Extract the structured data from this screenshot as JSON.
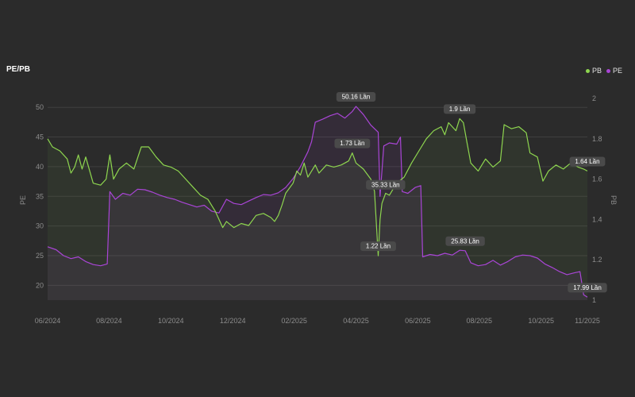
{
  "chart_data": {
    "type": "line",
    "title": "PE/PB",
    "legend": [
      {
        "name": "PB",
        "color": "#8ed64f"
      },
      {
        "name": "PE",
        "color": "#a945d6"
      }
    ],
    "legend_position": "top-right",
    "y_left_label": "PE",
    "y_right_label": "PB",
    "y_left_range": [
      17.5,
      51.5
    ],
    "y_right_range": [
      1.0,
      2.0
    ],
    "y_left_ticks": [
      20,
      25,
      30,
      35,
      40,
      45,
      50
    ],
    "y_right_ticks": [
      1,
      1.2,
      1.4,
      1.6,
      1.8,
      2
    ],
    "x_range": [
      2024.417,
      2025.875
    ],
    "x_ticks": [
      {
        "label": "06/2024",
        "x": 2024.417
      },
      {
        "label": "08/2024",
        "x": 2024.583
      },
      {
        "label": "10/2024",
        "x": 2024.75
      },
      {
        "label": "12/2024",
        "x": 2024.917
      },
      {
        "label": "02/2025",
        "x": 2025.083
      },
      {
        "label": "04/2025",
        "x": 2025.25
      },
      {
        "label": "06/2025",
        "x": 2025.417
      },
      {
        "label": "08/2025",
        "x": 2025.583
      },
      {
        "label": "10/2025",
        "x": 2025.75
      },
      {
        "label": "11/2025",
        "x": 2025.875
      }
    ],
    "grid": true,
    "series": [
      {
        "name": "PE",
        "axis": "left",
        "color": "#a945d6",
        "points": [
          [
            2024.417,
            26.5
          ],
          [
            2024.44,
            26
          ],
          [
            2024.46,
            25
          ],
          [
            2024.48,
            24.5
          ],
          [
            2024.5,
            24.8
          ],
          [
            2024.52,
            24
          ],
          [
            2024.54,
            23.5
          ],
          [
            2024.56,
            23.3
          ],
          [
            2024.578,
            23.6
          ],
          [
            2024.585,
            35.8
          ],
          [
            2024.6,
            34.5
          ],
          [
            2024.62,
            35.5
          ],
          [
            2024.64,
            35.2
          ],
          [
            2024.66,
            36.2
          ],
          [
            2024.68,
            36.1
          ],
          [
            2024.7,
            35.7
          ],
          [
            2024.72,
            35.2
          ],
          [
            2024.74,
            34.8
          ],
          [
            2024.76,
            34.5
          ],
          [
            2024.78,
            34
          ],
          [
            2024.8,
            33.6
          ],
          [
            2024.82,
            33.2
          ],
          [
            2024.84,
            33.5
          ],
          [
            2024.86,
            32.5
          ],
          [
            2024.88,
            32.2
          ],
          [
            2024.9,
            34.5
          ],
          [
            2024.92,
            33.8
          ],
          [
            2024.94,
            33.6
          ],
          [
            2024.96,
            34.2
          ],
          [
            2024.98,
            34.8
          ],
          [
            2025.0,
            35.3
          ],
          [
            2025.02,
            35.2
          ],
          [
            2025.04,
            35.6
          ],
          [
            2025.06,
            36.5
          ],
          [
            2025.08,
            38
          ],
          [
            2025.1,
            40
          ],
          [
            2025.12,
            42.5
          ],
          [
            2025.13,
            44.2
          ],
          [
            2025.14,
            47.5
          ],
          [
            2025.16,
            48
          ],
          [
            2025.18,
            48.6
          ],
          [
            2025.2,
            49
          ],
          [
            2025.22,
            48.2
          ],
          [
            2025.24,
            49.3
          ],
          [
            2025.25,
            50.16
          ],
          [
            2025.27,
            48.8
          ],
          [
            2025.29,
            47
          ],
          [
            2025.31,
            45.8
          ],
          [
            2025.315,
            35
          ],
          [
            2025.325,
            43.5
          ],
          [
            2025.34,
            44
          ],
          [
            2025.36,
            43.8
          ],
          [
            2025.37,
            45
          ],
          [
            2025.375,
            35.8
          ],
          [
            2025.39,
            35.5
          ],
          [
            2025.41,
            36.5
          ],
          [
            2025.425,
            36.8
          ],
          [
            2025.43,
            24.8
          ],
          [
            2025.45,
            25.2
          ],
          [
            2025.47,
            25
          ],
          [
            2025.49,
            25.4
          ],
          [
            2025.51,
            25.1
          ],
          [
            2025.53,
            25.9
          ],
          [
            2025.545,
            25.83
          ],
          [
            2025.56,
            23.8
          ],
          [
            2025.58,
            23.3
          ],
          [
            2025.6,
            23.5
          ],
          [
            2025.62,
            24.2
          ],
          [
            2025.64,
            23.4
          ],
          [
            2025.66,
            24
          ],
          [
            2025.68,
            24.8
          ],
          [
            2025.7,
            25.1
          ],
          [
            2025.72,
            25
          ],
          [
            2025.74,
            24.6
          ],
          [
            2025.76,
            23.6
          ],
          [
            2025.78,
            23
          ],
          [
            2025.8,
            22.3
          ],
          [
            2025.82,
            21.8
          ],
          [
            2025.84,
            22.1
          ],
          [
            2025.855,
            22.3
          ],
          [
            2025.865,
            18.4
          ],
          [
            2025.875,
            17.99
          ]
        ]
      },
      {
        "name": "PB",
        "axis": "right",
        "color": "#8ed64f",
        "points": [
          [
            2024.417,
            1.8
          ],
          [
            2024.43,
            1.76
          ],
          [
            2024.45,
            1.74
          ],
          [
            2024.47,
            1.7
          ],
          [
            2024.48,
            1.63
          ],
          [
            2024.49,
            1.66
          ],
          [
            2024.5,
            1.72
          ],
          [
            2024.51,
            1.65
          ],
          [
            2024.52,
            1.71
          ],
          [
            2024.54,
            1.58
          ],
          [
            2024.56,
            1.57
          ],
          [
            2024.575,
            1.6
          ],
          [
            2024.585,
            1.72
          ],
          [
            2024.595,
            1.6
          ],
          [
            2024.61,
            1.65
          ],
          [
            2024.63,
            1.68
          ],
          [
            2024.65,
            1.65
          ],
          [
            2024.67,
            1.76
          ],
          [
            2024.69,
            1.76
          ],
          [
            2024.71,
            1.71
          ],
          [
            2024.73,
            1.67
          ],
          [
            2024.75,
            1.66
          ],
          [
            2024.77,
            1.64
          ],
          [
            2024.79,
            1.6
          ],
          [
            2024.81,
            1.56
          ],
          [
            2024.83,
            1.52
          ],
          [
            2024.85,
            1.5
          ],
          [
            2024.87,
            1.44
          ],
          [
            2024.89,
            1.36
          ],
          [
            2024.9,
            1.39
          ],
          [
            2024.92,
            1.36
          ],
          [
            2024.94,
            1.38
          ],
          [
            2024.96,
            1.37
          ],
          [
            2024.98,
            1.42
          ],
          [
            2025.0,
            1.43
          ],
          [
            2025.02,
            1.41
          ],
          [
            2025.03,
            1.39
          ],
          [
            2025.04,
            1.42
          ],
          [
            2025.05,
            1.47
          ],
          [
            2025.06,
            1.53
          ],
          [
            2025.08,
            1.58
          ],
          [
            2025.09,
            1.64
          ],
          [
            2025.1,
            1.62
          ],
          [
            2025.11,
            1.68
          ],
          [
            2025.12,
            1.61
          ],
          [
            2025.14,
            1.67
          ],
          [
            2025.15,
            1.63
          ],
          [
            2025.17,
            1.67
          ],
          [
            2025.19,
            1.66
          ],
          [
            2025.21,
            1.67
          ],
          [
            2025.23,
            1.69
          ],
          [
            2025.24,
            1.73
          ],
          [
            2025.25,
            1.68
          ],
          [
            2025.27,
            1.65
          ],
          [
            2025.29,
            1.6
          ],
          [
            2025.3,
            1.54
          ],
          [
            2025.31,
            1.22
          ],
          [
            2025.315,
            1.4
          ],
          [
            2025.32,
            1.48
          ],
          [
            2025.33,
            1.53
          ],
          [
            2025.34,
            1.52
          ],
          [
            2025.35,
            1.55
          ],
          [
            2025.36,
            1.58
          ],
          [
            2025.38,
            1.61
          ],
          [
            2025.4,
            1.68
          ],
          [
            2025.42,
            1.74
          ],
          [
            2025.44,
            1.8
          ],
          [
            2025.46,
            1.84
          ],
          [
            2025.48,
            1.86
          ],
          [
            2025.49,
            1.82
          ],
          [
            2025.5,
            1.88
          ],
          [
            2025.52,
            1.84
          ],
          [
            2025.53,
            1.9
          ],
          [
            2025.54,
            1.88
          ],
          [
            2025.55,
            1.78
          ],
          [
            2025.56,
            1.68
          ],
          [
            2025.58,
            1.64
          ],
          [
            2025.6,
            1.7
          ],
          [
            2025.62,
            1.66
          ],
          [
            2025.64,
            1.69
          ],
          [
            2025.65,
            1.87
          ],
          [
            2025.67,
            1.85
          ],
          [
            2025.69,
            1.86
          ],
          [
            2025.71,
            1.83
          ],
          [
            2025.72,
            1.73
          ],
          [
            2025.74,
            1.71
          ],
          [
            2025.755,
            1.59
          ],
          [
            2025.77,
            1.64
          ],
          [
            2025.79,
            1.67
          ],
          [
            2025.81,
            1.65
          ],
          [
            2025.83,
            1.68
          ],
          [
            2025.85,
            1.66
          ],
          [
            2025.865,
            1.65
          ],
          [
            2025.875,
            1.64
          ]
        ]
      }
    ],
    "annotations": [
      {
        "text": "50.16 Lần",
        "series": "PE",
        "x": 2025.25,
        "value": 50.16
      },
      {
        "text": "1.9 Lần",
        "series": "PB",
        "x": 2025.53,
        "value": 1.9
      },
      {
        "text": "1.73 Lần",
        "series": "PB",
        "x": 2025.24,
        "value": 1.73
      },
      {
        "text": "35.33 Lần",
        "series": "PE",
        "x": 2025.33,
        "value": 35.33
      },
      {
        "text": "1.22 Lần",
        "series": "PB",
        "x": 2025.31,
        "value": 1.22
      },
      {
        "text": "25.83 Lần",
        "series": "PE",
        "x": 2025.545,
        "value": 25.83
      },
      {
        "text": "1.64 Lần",
        "series": "PB",
        "x": 2025.875,
        "value": 1.64
      },
      {
        "text": "17.99 Lần",
        "series": "PE",
        "x": 2025.875,
        "value": 17.99
      }
    ]
  }
}
